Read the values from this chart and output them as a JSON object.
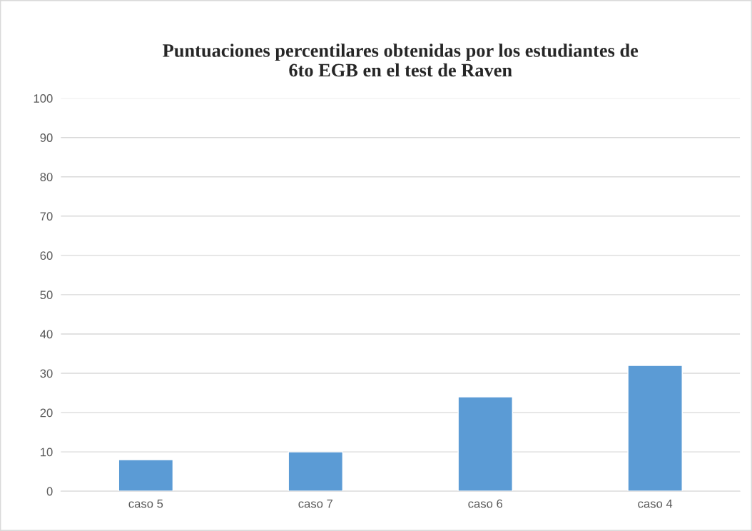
{
  "chart_data": {
    "type": "bar",
    "title": "Puntuaciones percentilares obtenidas por los estudiantes de\n6to EGB en el test de Raven",
    "categories": [
      "caso 5",
      "caso 7",
      "caso 6",
      "caso 4"
    ],
    "values": [
      8,
      10,
      24,
      32
    ],
    "color": "#5b9bd5",
    "ylim": [
      0,
      100
    ],
    "yticks": [
      0,
      10,
      20,
      30,
      40,
      50,
      60,
      70,
      80,
      90,
      100
    ],
    "grid": "y",
    "legend": false
  }
}
